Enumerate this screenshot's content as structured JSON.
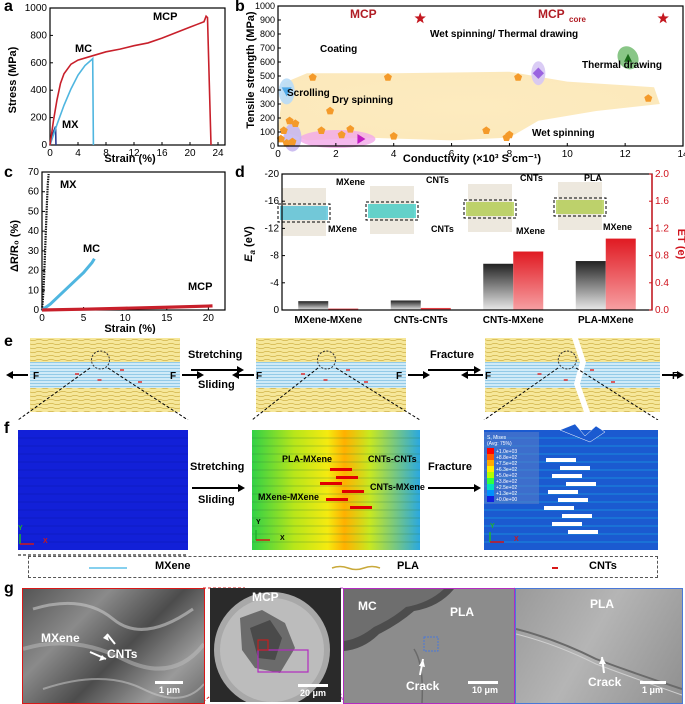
{
  "panels": {
    "a": "a",
    "b": "b",
    "c": "c",
    "d": "d",
    "e": "e",
    "f": "f",
    "g": "g"
  },
  "chart_data": [
    {
      "id": "a",
      "type": "line",
      "title": "",
      "xlabel": "Strain (%)",
      "ylabel": "Stress (MPa)",
      "xlim": [
        0,
        25
      ],
      "ylim": [
        0,
        1000
      ],
      "xticks": [
        0,
        4,
        8,
        12,
        16,
        20,
        24
      ],
      "yticks": [
        0,
        200,
        400,
        600,
        800,
        1000
      ],
      "series": [
        {
          "name": "MX",
          "color": "#2b3a8f",
          "x": [
            0,
            0.2,
            0.4,
            0.6,
            0.8,
            0.85
          ],
          "y": [
            0,
            40,
            80,
            110,
            135,
            0
          ]
        },
        {
          "name": "MC",
          "color": "#4fb6e0",
          "x": [
            0,
            1,
            2,
            3,
            4,
            5,
            6,
            6.1,
            6.2
          ],
          "y": [
            0,
            150,
            290,
            410,
            510,
            580,
            625,
            630,
            0
          ]
        },
        {
          "name": "MCP",
          "color": "#c8202b",
          "x": [
            0,
            0.5,
            1,
            1.5,
            2,
            3,
            4,
            6,
            8,
            10,
            12,
            14,
            16,
            18,
            20,
            21,
            22,
            22.3,
            22.5,
            23
          ],
          "y": [
            0,
            180,
            330,
            450,
            520,
            590,
            620,
            650,
            680,
            700,
            725,
            745,
            780,
            820,
            860,
            880,
            900,
            940,
            930,
            0
          ]
        }
      ]
    },
    {
      "id": "b",
      "type": "scatter",
      "xlabel": "Conductivity (×10³ S cm⁻¹)",
      "ylabel": "Tensile strength (MPa)",
      "xlim": [
        0,
        14
      ],
      "ylim": [
        0,
        1000
      ],
      "xticks": [
        0,
        2,
        4,
        6,
        8,
        10,
        12,
        14
      ],
      "yticks": [
        0,
        100,
        200,
        300,
        400,
        500,
        600,
        700,
        800,
        900,
        1000
      ],
      "region_labels": [
        "Coating",
        "Scrolling",
        "Dry spinning",
        "Wet spinning/ Thermal drawing",
        "Thermal drawing",
        "Wet spinning"
      ],
      "mcp_label": "MCP",
      "mcp_core_label": "MCP",
      "mcp_core_sub": "core",
      "stars": [
        {
          "name": "MCP",
          "x": 4.5,
          "y": 940
        },
        {
          "name": "MCPcore",
          "x": 12.9,
          "y": 940
        }
      ],
      "pentagons": [
        [
          0.1,
          50
        ],
        [
          0.2,
          110
        ],
        [
          0.3,
          20
        ],
        [
          0.5,
          30
        ],
        [
          1.2,
          490
        ],
        [
          1.5,
          110
        ],
        [
          1.8,
          250
        ],
        [
          2.2,
          80
        ],
        [
          2.5,
          120
        ],
        [
          3.8,
          490
        ],
        [
          4.0,
          70
        ],
        [
          7.2,
          110
        ],
        [
          7.9,
          60
        ],
        [
          8.0,
          80
        ],
        [
          8.3,
          490
        ],
        [
          12.8,
          340
        ],
        [
          0.6,
          160
        ],
        [
          0.4,
          180
        ]
      ],
      "coating": {
        "x": 0.3,
        "y": 390
      },
      "scrolling": {
        "x": 0.5,
        "y": 60
      },
      "dry": {
        "x": 2.4,
        "y": 50
      },
      "wet_thermal": {
        "x": 9.0,
        "y": 520
      },
      "thermal": {
        "x": 12.1,
        "y": 630
      }
    },
    {
      "id": "c",
      "type": "line",
      "xlabel": "Strain (%)",
      "ylabel": "ΔR/R₀ (%)",
      "xlim": [
        0,
        22
      ],
      "ylim": [
        0,
        70
      ],
      "xticks": [
        0,
        5,
        10,
        15,
        20
      ],
      "yticks": [
        0,
        10,
        20,
        30,
        40,
        50,
        60,
        70
      ],
      "series": [
        {
          "name": "MX",
          "color": "#111111",
          "x": [
            0,
            0.1,
            0.2,
            0.3,
            0.4,
            0.5,
            0.6,
            0.7,
            0.8
          ],
          "y": [
            0,
            5,
            12,
            22,
            33,
            44,
            55,
            64,
            69
          ]
        },
        {
          "name": "MC",
          "color": "#4fb6e0",
          "x": [
            0,
            1,
            2,
            3,
            4,
            5,
            6,
            6.3
          ],
          "y": [
            0,
            3,
            7,
            11,
            15,
            19,
            24,
            26
          ]
        },
        {
          "name": "MCP",
          "color": "#c8202b",
          "x": [
            0,
            5,
            10,
            15,
            20,
            20.5
          ],
          "y": [
            0,
            0.4,
            0.9,
            1.4,
            2.0,
            2.1
          ]
        }
      ]
    },
    {
      "id": "d",
      "type": "bar",
      "categories": [
        "MXene-MXene",
        "CNTs-CNTs",
        "CNTs-MXene",
        "PLA-MXene"
      ],
      "series": [
        {
          "name": "Ea",
          "axis": "left",
          "color": "#4a4a4a",
          "values": [
            -1.3,
            -1.4,
            -6.8,
            -7.2
          ]
        },
        {
          "name": "ET",
          "axis": "right",
          "color": "#e8252f",
          "values": [
            0.02,
            0.03,
            0.86,
            1.05
          ]
        }
      ],
      "ylabel_left": "E",
      "ylabel_left_sub": "a",
      "ylabel_left_unit": " (eV)",
      "ylabel_right": "ET (e)",
      "ylim_left": [
        0,
        -20
      ],
      "ylim_right": [
        0,
        2.0
      ],
      "yticks_left": [
        0,
        -4,
        -8,
        -12,
        -16,
        -20
      ],
      "yticks_right": [
        0.0,
        0.4,
        0.8,
        1.2,
        1.6,
        2.0
      ],
      "annotations": [
        "MXene",
        "MXene",
        "CNTs",
        "CNTs",
        "CNTs",
        "MXene",
        "PLA",
        "MXene"
      ]
    }
  ],
  "panel_e": {
    "f_left": "F",
    "f_right": "F",
    "stretch": "Stretching",
    "slide": "Sliding",
    "fracture": "Fracture"
  },
  "panel_f": {
    "stretch": "Stretching",
    "slide": "Sliding",
    "fracture": "Fracture",
    "interfaces": [
      "PLA-MXene",
      "CNTs-CNTs",
      "CNTs-MXene",
      "MXene-MXene"
    ],
    "axis_y": "Y",
    "axis_x": "X",
    "legend_title": "S, Mises",
    "legend_avg": "(Avg: 75%)",
    "legend_values": [
      "+1.0e+03",
      "+8.8e+02",
      "+7.5e+02",
      "+6.3e+02",
      "+5.0e+02",
      "+3.8e+02",
      "+2.5e+02",
      "+1.3e+02",
      "+0.0e+00"
    ],
    "legend_colors": [
      "#ff0000",
      "#ff5a00",
      "#ffaa00",
      "#ffee00",
      "#b4ff00",
      "#30ff40",
      "#00e0c0",
      "#0090ff",
      "#1020e0"
    ]
  },
  "material_legend": {
    "mxene": "MXene",
    "pla": "PLA",
    "cnts": "CNTs"
  },
  "panel_g": {
    "img1": {
      "label1": "MXene",
      "label2": "CNTs",
      "scale": "1 μm"
    },
    "img2": {
      "label": "MCP",
      "scale": "20 μm"
    },
    "img3": {
      "label1": "MC",
      "label2": "PLA",
      "label3": "Crack",
      "scale": "10 μm"
    },
    "img4": {
      "label1": "PLA",
      "label2": "Crack",
      "scale": "1 μm"
    }
  }
}
